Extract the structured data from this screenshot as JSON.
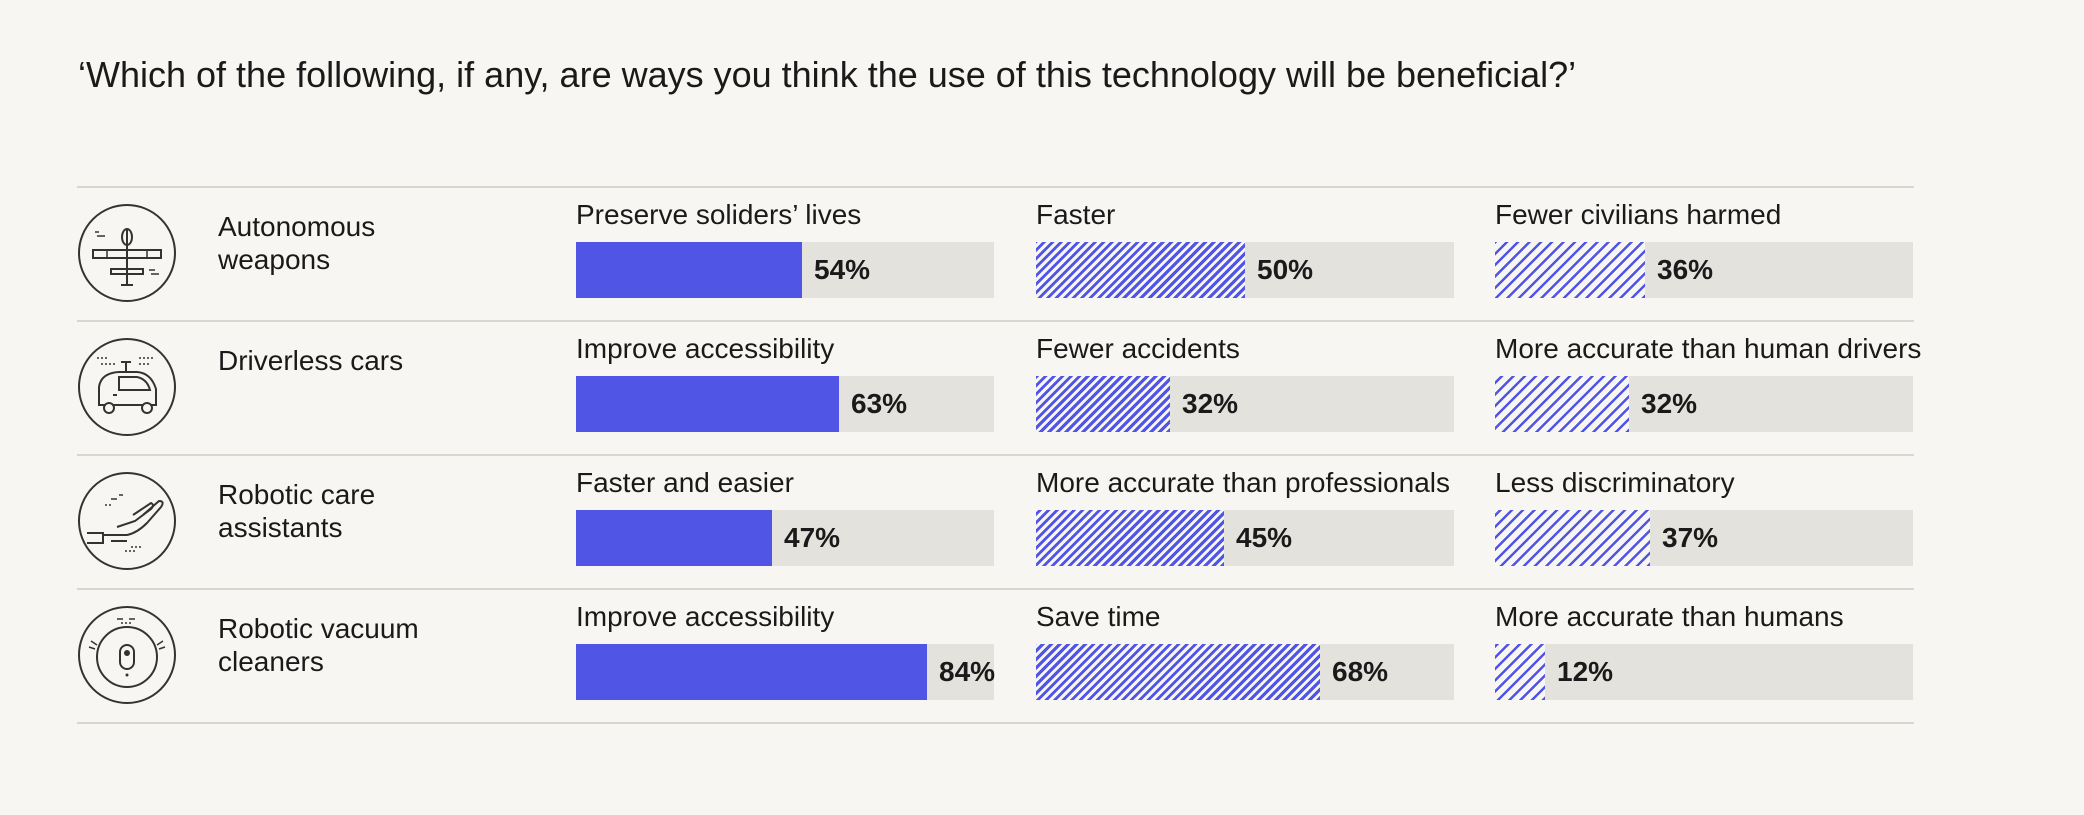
{
  "question": "‘Which of the following, if any, are ways you think the use of this technology will be beneficial?’",
  "colors": {
    "accent": "#5055e5",
    "track": "#e4e2dc",
    "background": "#f8f6f2",
    "rule": "#d9d6d0"
  },
  "chart_data": {
    "type": "bar",
    "orientation": "horizontal",
    "title": "",
    "subtitle": "‘Which of the following, if any, are ways you think the use of this technology will be beneficial?’",
    "unit": "%",
    "xlim": [
      0,
      100
    ],
    "grid": false,
    "rows": [
      {
        "label": "Autonomous weapons",
        "icon": "drone-icon",
        "metrics": [
          {
            "label": "Preserve soliders’ lives",
            "value": 54,
            "display": "54%",
            "style": "solid"
          },
          {
            "label": "Faster",
            "value": 50,
            "display": "50%",
            "style": "hatch-dense"
          },
          {
            "label": "Fewer civilians harmed",
            "value": 36,
            "display": "36%",
            "style": "hatch-sparse"
          }
        ]
      },
      {
        "label": "Driverless cars",
        "icon": "driverless-car-icon",
        "metrics": [
          {
            "label": "Improve accessibility",
            "value": 63,
            "display": "63%",
            "style": "solid"
          },
          {
            "label": "Fewer accidents",
            "value": 32,
            "display": "32%",
            "style": "hatch-dense"
          },
          {
            "label": "More accurate than human drivers",
            "value": 32,
            "display": "32%",
            "style": "hatch-sparse"
          }
        ]
      },
      {
        "label": "Robotic care assistants",
        "icon": "robotic-hand-icon",
        "metrics": [
          {
            "label": "Faster and easier",
            "value": 47,
            "display": "47%",
            "style": "solid"
          },
          {
            "label": "More accurate than professionals",
            "value": 45,
            "display": "45%",
            "style": "hatch-dense"
          },
          {
            "label": "Less discriminatory",
            "value": 37,
            "display": "37%",
            "style": "hatch-sparse"
          }
        ]
      },
      {
        "label": "Robotic vacuum cleaners",
        "icon": "robot-vacuum-icon",
        "metrics": [
          {
            "label": "Improve accessibility",
            "value": 84,
            "display": "84%",
            "style": "solid"
          },
          {
            "label": "Save time",
            "value": 68,
            "display": "68%",
            "style": "hatch-dense"
          },
          {
            "label": "More accurate than humans",
            "value": 12,
            "display": "12%",
            "style": "hatch-sparse"
          }
        ]
      }
    ]
  }
}
